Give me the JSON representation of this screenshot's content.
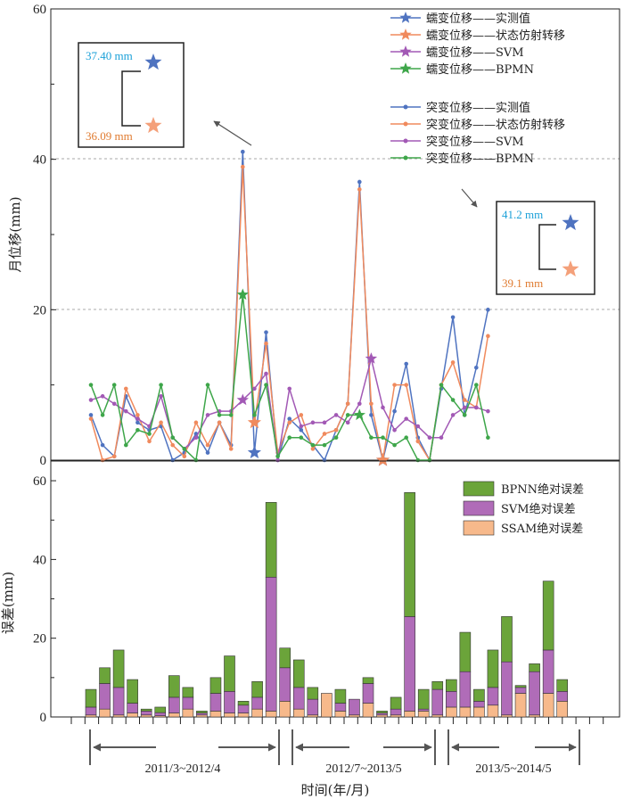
{
  "chart_data": [
    {
      "type": "line",
      "ylabel": "月位移(mm)",
      "ylim": [
        0,
        60
      ],
      "yticks": [
        0,
        20,
        40,
        60
      ],
      "grid": "dashed horizontal at 20 and 40",
      "legend_position": "top-right",
      "n_points": 44,
      "peaks": [
        {
          "index": 14,
          "measured_label": "37.40 mm",
          "predicted_label": "36.09 mm"
        },
        {
          "index": 25,
          "measured_label": "41.2 mm",
          "predicted_label": "39.1 mm"
        }
      ],
      "series": [
        {
          "name": "突变位移——实测值",
          "color": "#4f73c0",
          "values": [
            6,
            2,
            0.5,
            8.5,
            5,
            4,
            4.5,
            0,
            1,
            3.5,
            1,
            5,
            2,
            41,
            1,
            17,
            0,
            5.5,
            4,
            2,
            0,
            4,
            7.5,
            37,
            6,
            0,
            6.5,
            12.8,
            3,
            0,
            9.5,
            19,
            6,
            12.3,
            20,
            null,
            null,
            null,
            null,
            null,
            null,
            null,
            null,
            null
          ]
        },
        {
          "name": "突变位移——状态仿射转移",
          "color": "#f08a5d",
          "values": [
            5.5,
            0,
            0.5,
            9.5,
            6,
            2.5,
            5,
            2,
            0.5,
            5,
            2,
            5,
            1.5,
            39,
            5,
            15.5,
            1,
            5,
            6,
            1.5,
            3.5,
            4,
            7.5,
            36,
            7.5,
            0,
            10,
            10,
            2.5,
            0,
            10,
            13,
            8,
            7,
            16.5,
            null,
            null,
            null,
            null,
            null,
            null,
            null,
            null,
            null
          ]
        },
        {
          "name": "突变位移——SVM",
          "color": "#a259b5",
          "values": [
            8,
            8.5,
            7.5,
            6.5,
            5.5,
            4.5,
            8.5,
            3,
            1.5,
            3,
            6,
            6.5,
            6.5,
            8,
            9.5,
            11.5,
            0,
            9.5,
            4.5,
            5,
            5,
            6,
            5,
            7.5,
            13.5,
            7,
            4,
            5.5,
            4.5,
            3,
            3,
            6,
            7,
            7,
            6.5,
            null,
            null,
            null,
            null,
            null,
            null,
            null,
            null,
            null
          ]
        },
        {
          "name": "突变位移——BPMN",
          "color": "#3ea64a",
          "values": [
            10,
            6,
            10,
            2,
            4,
            3.5,
            10,
            3,
            1.5,
            0,
            10,
            6,
            6,
            22,
            6,
            10,
            0.5,
            3,
            3,
            2,
            2,
            3,
            6,
            6,
            3,
            3,
            2,
            3,
            0,
            0,
            10,
            8,
            6,
            10,
            3,
            null,
            null,
            null,
            null,
            null,
            null,
            null,
            null,
            null
          ]
        }
      ],
      "legend_entries": [
        {
          "label": "蠕变位移——实测值",
          "color": "#4f73c0",
          "marker": "star"
        },
        {
          "label": "蠕变位移——状态仿射转移",
          "color": "#f08a5d",
          "marker": "star"
        },
        {
          "label": "蠕变位移——SVM",
          "color": "#a259b5",
          "marker": "star"
        },
        {
          "label": "蠕变位移——BPMN",
          "color": "#3ea64a",
          "marker": "star"
        },
        {
          "label": "突变位移——实测值",
          "color": "#4f73c0",
          "marker": "dot"
        },
        {
          "label": "突变位移——状态仿射转移",
          "color": "#f08a5d",
          "marker": "dot"
        },
        {
          "label": "突变位移——SVM",
          "color": "#a259b5",
          "marker": "dot"
        },
        {
          "label": "突变位移——BPMN",
          "color": "#3ea64a",
          "marker": "dot"
        }
      ]
    },
    {
      "type": "bar",
      "stacked": true,
      "xlabel": "时间(年/月)",
      "ylabel": "误差(mm)",
      "ylim": [
        0,
        65
      ],
      "yticks": [
        0,
        20,
        40,
        60
      ],
      "legend_position": "top-right",
      "period_labels": [
        "2011/3~2012/4",
        "2012/7~2013/5",
        "2013/5~2014/5"
      ],
      "series": [
        {
          "name": "SSAM绝对误差",
          "color": "#f7b98b",
          "values": [
            0.5,
            2,
            0.5,
            1,
            0.5,
            0.3,
            1,
            2,
            0.5,
            1.5,
            1,
            1,
            2,
            1.5,
            4,
            2,
            0.5,
            6,
            1.5,
            0.5,
            3.5,
            0.5,
            0.5,
            1.5,
            1.5,
            0.5,
            2.5,
            2.5,
            2.5,
            3,
            0.5,
            6,
            0.5,
            6,
            4
          ]
        },
        {
          "name": "SVM绝对误差",
          "color": "#b06cb8",
          "values": [
            2,
            6.5,
            7,
            2.5,
            1,
            0.8,
            4,
            3,
            0.5,
            4.5,
            5.5,
            2,
            3,
            34,
            8.5,
            5.5,
            4,
            0,
            2,
            4,
            5,
            0.5,
            1.5,
            24,
            0.5,
            6.5,
            4,
            9,
            1.5,
            4.5,
            13.5,
            1.5,
            11,
            11,
            2.5
          ]
        },
        {
          "name": "BPNN绝对误差",
          "color": "#6ba43a",
          "values": [
            4.5,
            4,
            9.5,
            6,
            0.5,
            1.4,
            5.5,
            2.5,
            0.5,
            4,
            9,
            1,
            4,
            19,
            5,
            7,
            3,
            0,
            3.5,
            0,
            1.5,
            0.5,
            3,
            31.5,
            5,
            2,
            3,
            10,
            3,
            9.5,
            11.5,
            0.5,
            2,
            17.5,
            3
          ]
        }
      ]
    }
  ]
}
